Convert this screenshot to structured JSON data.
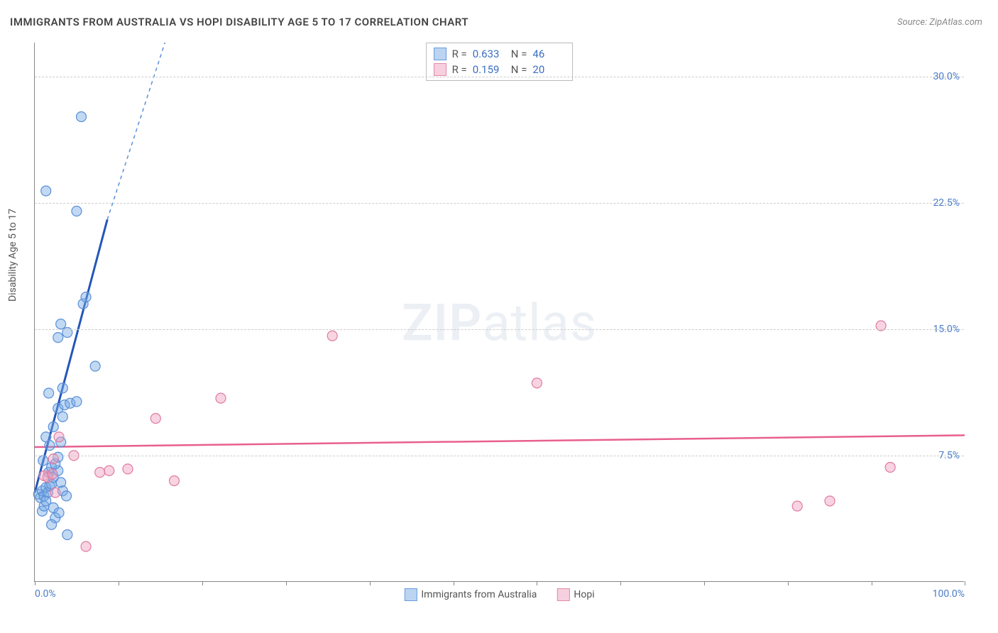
{
  "title": "IMMIGRANTS FROM AUSTRALIA VS HOPI DISABILITY AGE 5 TO 17 CORRELATION CHART",
  "source": "Source: ZipAtlas.com",
  "y_axis_label": "Disability Age 5 to 17",
  "watermark_a": "ZIP",
  "watermark_b": "atlas",
  "chart": {
    "type": "scatter",
    "xlim": [
      0,
      100
    ],
    "ylim": [
      0,
      32
    ],
    "x_tick_positions": [
      0,
      9,
      18,
      27,
      36,
      45,
      54,
      63,
      72,
      81,
      90,
      100
    ],
    "x_tick_labels_shown": {
      "0": "0.0%",
      "100": "100.0%"
    },
    "y_ticks": [
      7.5,
      15.0,
      22.5,
      30.0
    ],
    "y_tick_labels": [
      "7.5%",
      "15.0%",
      "22.5%",
      "30.0%"
    ],
    "grid_color": "#cccccc",
    "axis_color": "#888888",
    "background_color": "#ffffff",
    "series": [
      {
        "name": "Immigrants from Australia",
        "color_fill": "rgba(120,170,230,0.45)",
        "color_stroke": "#5a8fd6",
        "trend_color": "#2456b8",
        "trend_dash_color": "#5a8fd6",
        "R": "0.633",
        "N": "46",
        "marker_radius": 7,
        "trend": {
          "x1": 0,
          "y1": 5.3,
          "x2": 7.8,
          "y2": 21.5,
          "dash_x2": 14,
          "dash_y2": 32
        },
        "points": [
          [
            0.4,
            5.2
          ],
          [
            0.6,
            5.0
          ],
          [
            0.8,
            5.4
          ],
          [
            1.0,
            5.1
          ],
          [
            1.2,
            5.6
          ],
          [
            1.4,
            5.3
          ],
          [
            1.6,
            5.7
          ],
          [
            0.8,
            4.2
          ],
          [
            1.0,
            4.5
          ],
          [
            1.2,
            4.8
          ],
          [
            2.0,
            4.4
          ],
          [
            2.2,
            3.8
          ],
          [
            1.8,
            5.8
          ],
          [
            1.5,
            6.5
          ],
          [
            1.8,
            6.8
          ],
          [
            2.0,
            6.2
          ],
          [
            2.5,
            6.6
          ],
          [
            2.8,
            5.9
          ],
          [
            3.0,
            5.4
          ],
          [
            2.2,
            7.0
          ],
          [
            2.5,
            7.4
          ],
          [
            1.6,
            8.1
          ],
          [
            2.8,
            8.3
          ],
          [
            1.2,
            8.6
          ],
          [
            2.0,
            9.2
          ],
          [
            3.0,
            9.8
          ],
          [
            2.5,
            10.3
          ],
          [
            3.2,
            10.5
          ],
          [
            3.8,
            10.6
          ],
          [
            4.5,
            10.7
          ],
          [
            3.0,
            11.5
          ],
          [
            1.5,
            11.2
          ],
          [
            6.5,
            12.8
          ],
          [
            2.5,
            14.5
          ],
          [
            3.5,
            14.8
          ],
          [
            2.8,
            15.3
          ],
          [
            5.2,
            16.5
          ],
          [
            5.5,
            16.9
          ],
          [
            4.5,
            22.0
          ],
          [
            1.2,
            23.2
          ],
          [
            5.0,
            27.6
          ],
          [
            3.5,
            2.8
          ],
          [
            1.8,
            3.4
          ],
          [
            2.6,
            4.1
          ],
          [
            3.4,
            5.1
          ],
          [
            0.9,
            7.2
          ]
        ]
      },
      {
        "name": "Hopi",
        "color_fill": "rgba(240,160,190,0.45)",
        "color_stroke": "#e07ba0",
        "trend_color": "#e85f8f",
        "R": "0.159",
        "N": "20",
        "marker_radius": 7,
        "trend": {
          "x1": 0,
          "y1": 8.0,
          "x2": 100,
          "y2": 8.7
        },
        "points": [
          [
            1.0,
            6.3
          ],
          [
            1.4,
            6.2
          ],
          [
            1.9,
            6.4
          ],
          [
            2.2,
            5.3
          ],
          [
            2.0,
            7.3
          ],
          [
            4.2,
            7.5
          ],
          [
            5.5,
            2.1
          ],
          [
            7.0,
            6.5
          ],
          [
            8.0,
            6.6
          ],
          [
            10.0,
            6.7
          ],
          [
            13.0,
            9.7
          ],
          [
            15.0,
            6.0
          ],
          [
            20.0,
            10.9
          ],
          [
            32.0,
            14.6
          ],
          [
            54.0,
            11.8
          ],
          [
            82.0,
            4.5
          ],
          [
            85.5,
            4.8
          ],
          [
            91.0,
            15.2
          ],
          [
            92.0,
            6.8
          ],
          [
            2.6,
            8.6
          ]
        ]
      }
    ]
  },
  "legend_bottom": [
    {
      "label": "Immigrants from Australia",
      "swatch": "blue"
    },
    {
      "label": "Hopi",
      "swatch": "pink"
    }
  ],
  "legend_top_rows": [
    {
      "swatch": "blue",
      "r_label": "R =",
      "r_val": "0.633",
      "n_label": "N =",
      "n_val": "46"
    },
    {
      "swatch": "pink",
      "r_label": "R =",
      "r_val": "0.159",
      "n_label": "N =",
      "n_val": "20"
    }
  ]
}
